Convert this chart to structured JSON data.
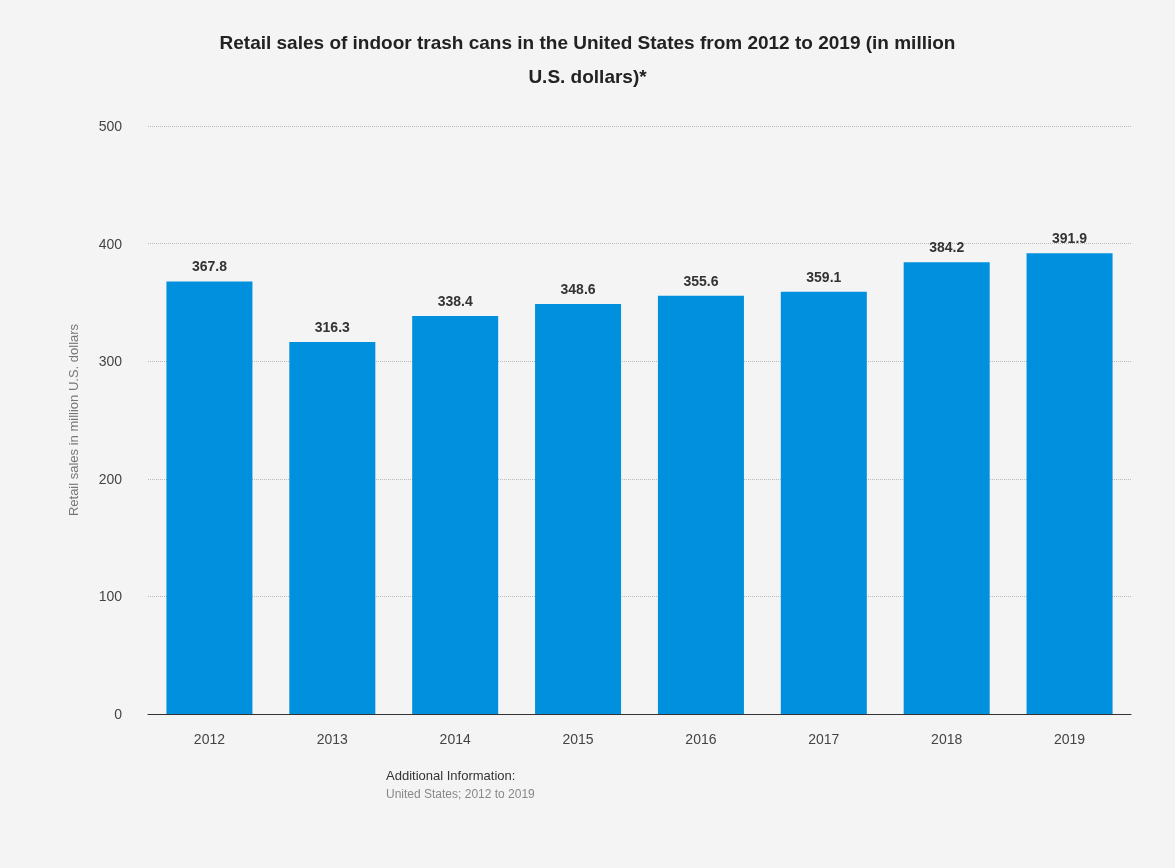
{
  "chart_data": {
    "type": "bar",
    "title": "Retail sales of indoor trash cans in the United States from 2012 to 2019 (in million U.S. dollars)*",
    "ylabel": "Retail sales in million U.S. dollars",
    "categories": [
      "2012",
      "2013",
      "2014",
      "2015",
      "2016",
      "2017",
      "2018",
      "2019"
    ],
    "values": [
      367.8,
      316.3,
      338.4,
      348.6,
      355.6,
      359.1,
      384.2,
      391.9
    ],
    "color": "#0090dd",
    "ylim": [
      0,
      500
    ],
    "yticks": [
      0,
      100,
      200,
      300,
      400,
      500
    ],
    "grid": "y",
    "data_labels": true,
    "annotations": [
      "Additional Information:",
      "United States; 2012 to 2019"
    ]
  }
}
